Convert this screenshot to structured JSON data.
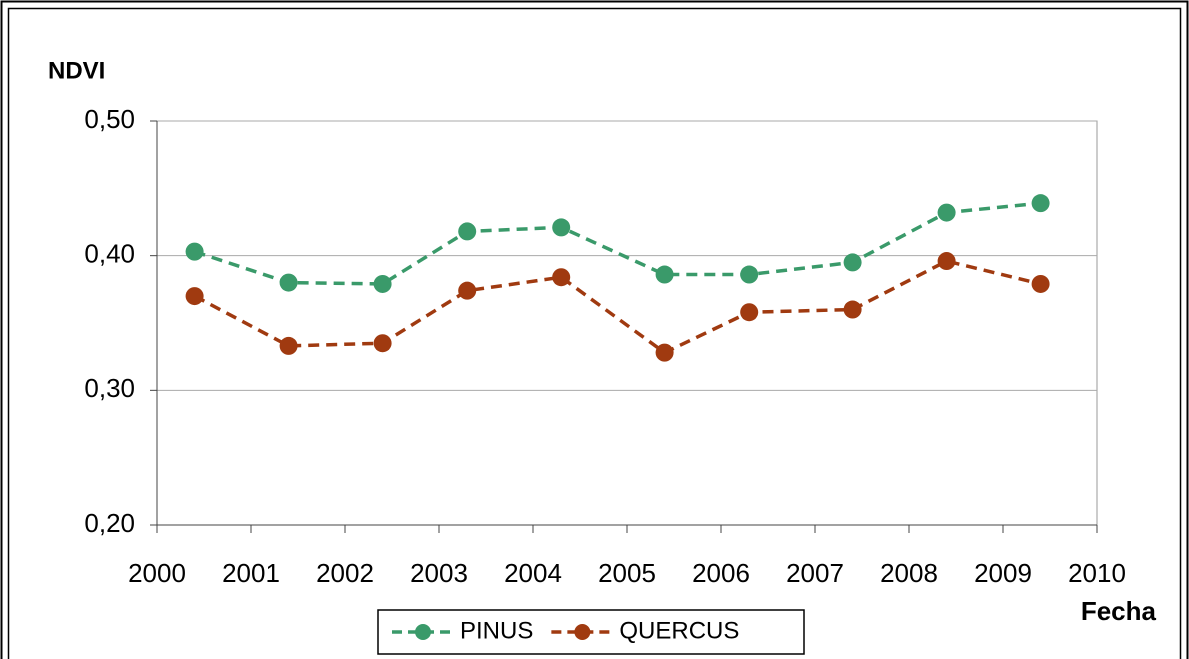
{
  "chart_data": {
    "type": "line",
    "ylabel": "NDVI",
    "xlabel": "Fecha",
    "x": [
      2000.4,
      2001.4,
      2002.4,
      2003.3,
      2004.3,
      2005.4,
      2006.3,
      2007.4,
      2008.4,
      2009.4
    ],
    "series": [
      {
        "name": "PINUS",
        "color": "#3a9a6a",
        "values": [
          0.403,
          0.38,
          0.379,
          0.418,
          0.421,
          0.386,
          0.386,
          0.395,
          0.432,
          0.439
        ]
      },
      {
        "name": "QUERCUS",
        "color": "#a03a10",
        "values": [
          0.37,
          0.333,
          0.335,
          0.374,
          0.384,
          0.328,
          0.358,
          0.36,
          0.396,
          0.379
        ]
      }
    ],
    "xlim": [
      2000,
      2010
    ],
    "xticks": [
      2000,
      2001,
      2002,
      2003,
      2004,
      2005,
      2006,
      2007,
      2008,
      2009,
      2010
    ],
    "ylim": [
      0.2,
      0.5
    ],
    "yticks": [
      {
        "value": 0.2,
        "label": "0,20"
      },
      {
        "value": 0.3,
        "label": "0,30"
      },
      {
        "value": 0.4,
        "label": "0,40"
      },
      {
        "value": 0.5,
        "label": "0,50"
      }
    ],
    "grid": true,
    "legend": "bottom"
  }
}
